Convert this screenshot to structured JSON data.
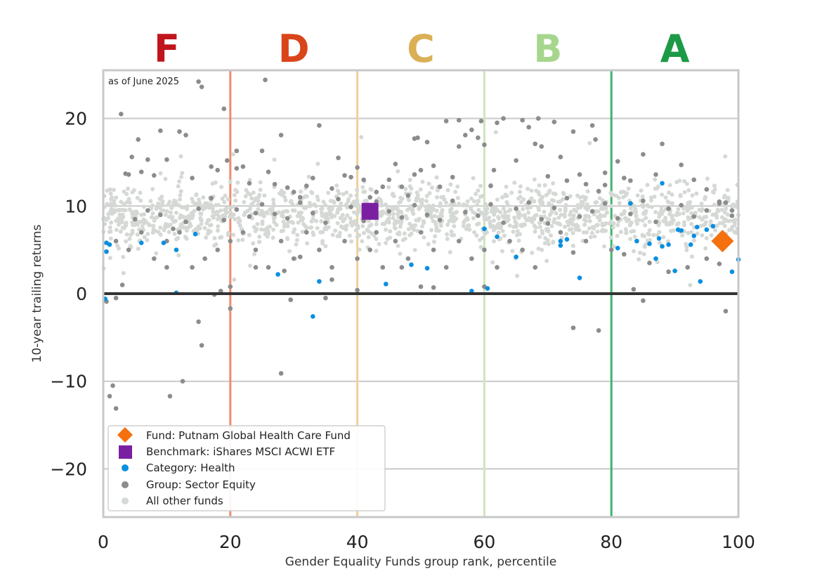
{
  "chart_data": {
    "type": "scatter",
    "note": "as of June 2025",
    "xlabel": "Gender Equality Funds group rank, percentile",
    "ylabel": "10-year trailing returns",
    "xlim": [
      0,
      100
    ],
    "ylim": [
      -25.5,
      25.5
    ],
    "x_ticks": [
      0,
      20,
      40,
      60,
      80,
      100
    ],
    "y_ticks": [
      -20,
      -10,
      0,
      10,
      20
    ],
    "grid": "horizontal",
    "legend_position": "lower-left",
    "grade_bands": [
      {
        "label": "F",
        "from": 0,
        "to": 20,
        "color": "#C0151D",
        "line_color": "#EF8C6E"
      },
      {
        "label": "D",
        "from": 20,
        "to": 40,
        "color": "#D9451A",
        "line_color": "#EFD09A"
      },
      {
        "label": "C",
        "from": 40,
        "to": 60,
        "color": "#D9B055",
        "line_color": "#CDE5BE"
      },
      {
        "label": "B",
        "from": 60,
        "to": 80,
        "color": "#A6D68E",
        "line_color": "#3FB468"
      },
      {
        "label": "A",
        "from": 80,
        "to": 100,
        "color": "#1D9A46",
        "line_color": "#89CC9D"
      }
    ],
    "zero_line": 0,
    "series": [
      {
        "name": "Fund: Putnam Global Health Care Fund",
        "marker": "diamond",
        "color": "#F5700F",
        "points": [
          [
            97.5,
            6.0
          ]
        ]
      },
      {
        "name": "Benchmark: iShares MSCI ACWI ETF",
        "marker": "square",
        "color": "#7B1FA2",
        "points": [
          [
            42,
            9.4
          ]
        ]
      },
      {
        "name": "Category: Health",
        "marker": "dot",
        "color": "#0A8FE0",
        "points": [
          [
            0.3,
            -0.6
          ],
          [
            0.5,
            5.8
          ],
          [
            0.5,
            4.8
          ],
          [
            1,
            5.6
          ],
          [
            6,
            5.8
          ],
          [
            9.5,
            5.8
          ],
          [
            11.5,
            5
          ],
          [
            11.5,
            0.1
          ],
          [
            14.5,
            6.8
          ],
          [
            27.5,
            2.2
          ],
          [
            34,
            1.4
          ],
          [
            33,
            -2.6
          ],
          [
            44.5,
            1.1
          ],
          [
            48.5,
            3.3
          ],
          [
            51,
            2.9
          ],
          [
            58,
            0.3
          ],
          [
            60,
            7.4
          ],
          [
            60.5,
            0.6
          ],
          [
            62,
            6.5
          ],
          [
            65,
            4.2
          ],
          [
            72,
            6
          ],
          [
            72,
            5.5
          ],
          [
            73,
            6.2
          ],
          [
            75,
            1.8
          ],
          [
            81,
            5.2
          ],
          [
            83,
            10.3
          ],
          [
            84,
            6
          ],
          [
            86,
            5.7
          ],
          [
            87,
            4
          ],
          [
            87.5,
            6.3
          ],
          [
            88,
            12.6
          ],
          [
            88,
            5.4
          ],
          [
            89,
            5.6
          ],
          [
            90,
            2.6
          ],
          [
            90.5,
            7.3
          ],
          [
            91,
            7.2
          ],
          [
            92.5,
            5.6
          ],
          [
            93,
            6.6
          ],
          [
            93.5,
            7.6
          ],
          [
            94,
            1.4
          ],
          [
            95,
            7.3
          ],
          [
            96,
            7.7
          ],
          [
            98,
            6.5
          ],
          [
            99,
            2.5
          ],
          [
            100,
            3.9
          ]
        ]
      },
      {
        "name": "Group: Sector Equity",
        "marker": "dot",
        "color": "#8C8C8C",
        "points": [
          [
            1,
            -11.7
          ],
          [
            1.5,
            -10.5
          ],
          [
            2,
            -13.1
          ],
          [
            2.8,
            20.5
          ],
          [
            3.5,
            13.7
          ],
          [
            4,
            13.6
          ],
          [
            4.5,
            15.6
          ],
          [
            5.5,
            17.6
          ],
          [
            6,
            13.9
          ],
          [
            7,
            15.3
          ],
          [
            8,
            13.5
          ],
          [
            9,
            18.6
          ],
          [
            10,
            15.3
          ],
          [
            10.5,
            -11.7
          ],
          [
            12,
            18.5
          ],
          [
            12.5,
            -10
          ],
          [
            13,
            18.1
          ],
          [
            14,
            13.2
          ],
          [
            15,
            24.2
          ],
          [
            15.5,
            23.6
          ],
          [
            15.5,
            -5.9
          ],
          [
            15,
            -3.2
          ],
          [
            17,
            14.5
          ],
          [
            18,
            14.1
          ],
          [
            19,
            21.1
          ],
          [
            19.5,
            15.2
          ],
          [
            20,
            0.8
          ],
          [
            20,
            -1.7
          ],
          [
            21,
            16.3
          ],
          [
            21,
            14.3
          ],
          [
            22,
            14.5
          ],
          [
            23,
            12.6
          ],
          [
            24,
            9.2
          ],
          [
            25,
            16.3
          ],
          [
            25.5,
            24.4
          ],
          [
            26,
            13.9
          ],
          [
            27,
            12.5
          ],
          [
            28,
            18.1
          ],
          [
            28,
            -9.1
          ],
          [
            29,
            12.1
          ],
          [
            29.5,
            -0.7
          ],
          [
            30,
            11.6
          ],
          [
            31,
            11
          ],
          [
            32,
            12.3
          ],
          [
            33,
            13.2
          ],
          [
            34,
            19.2
          ],
          [
            35,
            -0.5
          ],
          [
            36,
            12
          ],
          [
            37,
            15.5
          ],
          [
            38,
            13.5
          ],
          [
            39,
            13.3
          ],
          [
            40,
            14.4
          ],
          [
            40,
            0.4
          ],
          [
            41,
            13
          ],
          [
            42,
            11
          ],
          [
            43,
            11.6
          ],
          [
            44,
            12.2
          ],
          [
            45,
            13
          ],
          [
            46,
            14.8
          ],
          [
            47,
            12.2
          ],
          [
            48,
            11.2
          ],
          [
            49,
            13.6
          ],
          [
            49,
            17.7
          ],
          [
            49.5,
            17.8
          ],
          [
            50,
            14.1
          ],
          [
            51,
            17.3
          ],
          [
            52,
            14.6
          ],
          [
            53,
            12.2
          ],
          [
            54,
            19.7
          ],
          [
            55,
            13.3
          ],
          [
            56,
            16.8
          ],
          [
            56,
            19.8
          ],
          [
            57,
            18.1
          ],
          [
            58,
            18.7
          ],
          [
            59,
            17.8
          ],
          [
            59.5,
            19.7
          ],
          [
            60,
            17
          ],
          [
            61,
            12.3
          ],
          [
            61.5,
            14.1
          ],
          [
            62,
            19.5
          ],
          [
            63,
            20
          ],
          [
            65,
            15.2
          ],
          [
            66,
            19.8
          ],
          [
            67,
            19
          ],
          [
            68,
            17.1
          ],
          [
            68.5,
            20
          ],
          [
            69,
            16.8
          ],
          [
            70,
            13.4
          ],
          [
            71,
            19.6
          ],
          [
            72,
            15.6
          ],
          [
            73,
            12.9
          ],
          [
            74,
            18.5
          ],
          [
            75,
            13.6
          ],
          [
            76,
            12.5
          ],
          [
            77,
            19.2
          ],
          [
            77.5,
            17.6
          ],
          [
            78,
            11.7
          ],
          [
            79,
            12.4
          ],
          [
            79,
            13.8
          ],
          [
            81,
            15.1
          ],
          [
            82,
            13.2
          ],
          [
            83,
            12.9
          ],
          [
            85,
            15.9
          ],
          [
            87,
            13.6
          ],
          [
            88,
            17.1
          ],
          [
            91,
            14.7
          ],
          [
            93,
            13
          ],
          [
            95,
            11.9
          ],
          [
            97,
            10.5
          ],
          [
            98,
            10.4
          ],
          [
            99,
            9.5
          ],
          [
            74,
            -3.9
          ],
          [
            78,
            -4.2
          ],
          [
            85,
            -0.8
          ],
          [
            83.5,
            0.5
          ],
          [
            98,
            -2
          ],
          [
            97,
            3.4
          ],
          [
            95,
            4
          ],
          [
            92,
            3
          ],
          [
            89,
            2.5
          ],
          [
            86,
            3.5
          ],
          [
            82,
            4.5
          ],
          [
            80,
            5
          ],
          [
            76,
            6
          ],
          [
            74,
            4.7
          ],
          [
            72,
            7
          ],
          [
            70,
            8
          ],
          [
            68,
            3
          ],
          [
            66,
            5
          ],
          [
            64,
            6
          ],
          [
            62,
            3
          ],
          [
            60,
            5
          ],
          [
            58,
            4
          ],
          [
            56,
            6
          ],
          [
            54,
            3
          ],
          [
            52,
            5
          ],
          [
            50,
            7
          ],
          [
            48,
            4
          ],
          [
            46,
            6
          ],
          [
            44,
            3
          ],
          [
            42,
            5
          ],
          [
            40,
            4
          ],
          [
            38,
            6
          ],
          [
            36,
            3
          ],
          [
            34,
            5
          ],
          [
            32,
            7
          ],
          [
            30,
            4
          ],
          [
            28,
            6
          ],
          [
            26,
            3
          ],
          [
            24,
            5
          ],
          [
            22,
            7
          ],
          [
            20,
            6
          ],
          [
            18,
            5
          ],
          [
            16,
            4
          ],
          [
            14,
            3
          ],
          [
            12,
            7
          ],
          [
            10,
            6
          ],
          [
            8,
            4
          ],
          [
            6,
            7
          ],
          [
            4,
            5
          ],
          [
            2,
            6
          ],
          [
            3,
            1
          ],
          [
            5,
            8.5
          ],
          [
            7,
            9.5
          ],
          [
            9,
            9
          ],
          [
            11,
            7.4
          ],
          [
            13,
            8.2
          ],
          [
            15,
            9.7
          ],
          [
            17,
            10.9
          ],
          [
            19,
            8.4
          ],
          [
            21,
            9.6
          ],
          [
            23,
            8.8
          ],
          [
            25,
            10.2
          ],
          [
            27,
            9.1
          ],
          [
            29,
            8.6
          ],
          [
            31,
            10.4
          ],
          [
            33,
            9.2
          ],
          [
            35,
            8.1
          ],
          [
            37,
            10.8
          ],
          [
            39,
            9.9
          ],
          [
            41,
            8.3
          ],
          [
            43,
            10.5
          ],
          [
            45,
            9.4
          ],
          [
            47,
            8.7
          ],
          [
            49,
            10.1
          ],
          [
            51,
            9
          ],
          [
            53,
            8.4
          ],
          [
            55,
            10.6
          ],
          [
            57,
            9.3
          ],
          [
            59,
            8.9
          ],
          [
            61,
            10.2
          ],
          [
            63,
            8.1
          ],
          [
            65,
            9.7
          ],
          [
            67,
            10.4
          ],
          [
            69,
            8.5
          ],
          [
            71,
            9.8
          ],
          [
            73,
            10.9
          ],
          [
            75,
            8.8
          ],
          [
            77,
            9.4
          ],
          [
            79,
            10.3
          ],
          [
            81,
            8.6
          ],
          [
            83,
            9.1
          ],
          [
            85,
            10.6
          ],
          [
            87,
            8.2
          ],
          [
            89,
            9.7
          ],
          [
            91,
            10.1
          ],
          [
            93,
            8.8
          ],
          [
            95,
            9.5
          ],
          [
            97,
            10.3
          ],
          [
            99,
            8.9
          ],
          [
            60,
            0.8
          ],
          [
            52,
            0.7
          ],
          [
            50,
            0.8
          ],
          [
            47,
            3
          ],
          [
            43,
            7
          ],
          [
            36,
            1.6
          ],
          [
            31,
            4.2
          ],
          [
            28.5,
            2.6
          ],
          [
            24,
            3
          ],
          [
            18.5,
            0.3
          ],
          [
            17.5,
            -0.1
          ],
          [
            10,
            3
          ],
          [
            2,
            -0.5
          ],
          [
            0.5,
            -0.9
          ]
        ]
      },
      {
        "name": "All other funds",
        "marker": "dot",
        "color": "#D5D9D5",
        "points": []
      }
    ]
  }
}
